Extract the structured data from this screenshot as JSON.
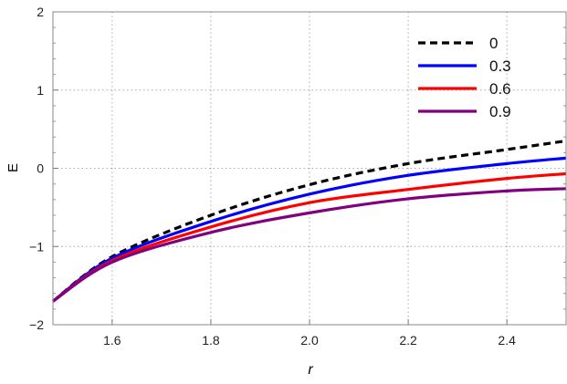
{
  "chart_data": {
    "type": "line",
    "title": "",
    "xlabel": "r",
    "ylabel": "E",
    "xlim": [
      1.48,
      2.52
    ],
    "ylim": [
      -2,
      2
    ],
    "xticks": [
      1.6,
      1.8,
      2.0,
      2.2,
      2.4
    ],
    "xtick_labels": [
      "1.6",
      "1.8",
      "2.0",
      "2.2",
      "2.4"
    ],
    "yticks": [
      -2,
      -1,
      0,
      1,
      2
    ],
    "ytick_labels": [
      "−2",
      "−1",
      "0",
      "1",
      "2"
    ],
    "grid": true,
    "legend_position": "top-right",
    "x": [
      1.48,
      1.6,
      1.8,
      2.0,
      2.2,
      2.4,
      2.52
    ],
    "series": [
      {
        "name": "0",
        "color": "#000000",
        "dash": true,
        "values": [
          -1.7,
          -1.13,
          -0.6,
          -0.21,
          0.06,
          0.24,
          0.35
        ]
      },
      {
        "name": "0.3",
        "color": "#0000ff",
        "dash": false,
        "values": [
          -1.7,
          -1.15,
          -0.68,
          -0.33,
          -0.09,
          0.06,
          0.13
        ]
      },
      {
        "name": "0.6",
        "color": "#ff0000",
        "dash": false,
        "values": [
          -1.7,
          -1.18,
          -0.75,
          -0.44,
          -0.27,
          -0.13,
          -0.07
        ]
      },
      {
        "name": "0.9",
        "color": "#800080",
        "dash": false,
        "values": [
          -1.7,
          -1.2,
          -0.82,
          -0.57,
          -0.39,
          -0.29,
          -0.26
        ]
      }
    ]
  }
}
